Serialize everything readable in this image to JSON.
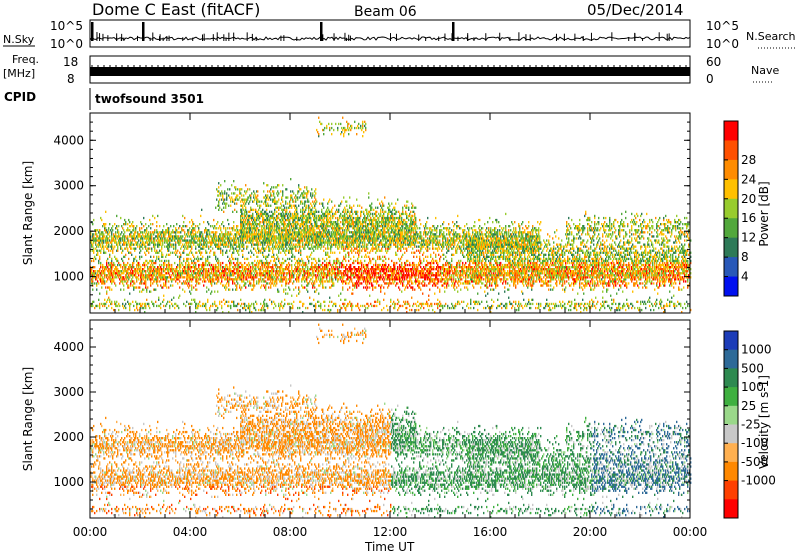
{
  "header": {
    "station": "Dome C East (fitACF)",
    "beam": "Beam 06",
    "date": "05/Dec/2014"
  },
  "top_panels": {
    "nsky_label": "N.Sky",
    "nsky_ticks": [
      "10^5",
      "10^0"
    ],
    "nsearch_label": "N.Search",
    "nsearch_ticks": [
      "10^5",
      "10^0"
    ],
    "freq_label": "Freq.",
    "freq_unit": "[MHz]",
    "freq_ticks": [
      "18",
      "8"
    ],
    "nave_label": "Nave",
    "nave_ticks": [
      "60",
      "0"
    ],
    "cpid_label": "CPID",
    "cpid_value": "twofsound 3501"
  },
  "chart_data": [
    {
      "type": "heatmap",
      "name": "power",
      "xlabel": "",
      "ylabel": "Slant Range [km]",
      "xlim": [
        0,
        24
      ],
      "ylim": [
        200,
        4600
      ],
      "y_ticks": [
        "1000",
        "2000",
        "3000",
        "4000"
      ],
      "colorbar": {
        "label": "Power [dB]",
        "ticks": [
          "4",
          "8",
          "12",
          "16",
          "20",
          "24",
          "28"
        ],
        "colors": [
          "#0010f0",
          "#2858b8",
          "#2e7a58",
          "#52a83c",
          "#98cc2e",
          "#ffc000",
          "#ff8c00",
          "#ff5000",
          "#ff0000"
        ]
      }
    },
    {
      "type": "heatmap",
      "name": "velocity",
      "xlabel": "Time UT",
      "ylabel": "Slant Range [km]",
      "xlim": [
        0,
        24
      ],
      "ylim": [
        200,
        4600
      ],
      "x_ticks": [
        "00:00",
        "04:00",
        "08:00",
        "12:00",
        "16:00",
        "20:00",
        "00:00"
      ],
      "y_ticks": [
        "1000",
        "2000",
        "3000",
        "4000"
      ],
      "colorbar": {
        "label": "Velocity [m s-1]",
        "ticks": [
          "1000",
          "500",
          "100",
          "25",
          "-25",
          "-100",
          "-500",
          "-1000"
        ],
        "colors": [
          "#1c3cb8",
          "#2e6a98",
          "#2e8a50",
          "#3fb040",
          "#9ad88a",
          "#c8c8c8",
          "#ffb050",
          "#ff8800",
          "#ff4000",
          "#ff0000"
        ]
      }
    }
  ]
}
